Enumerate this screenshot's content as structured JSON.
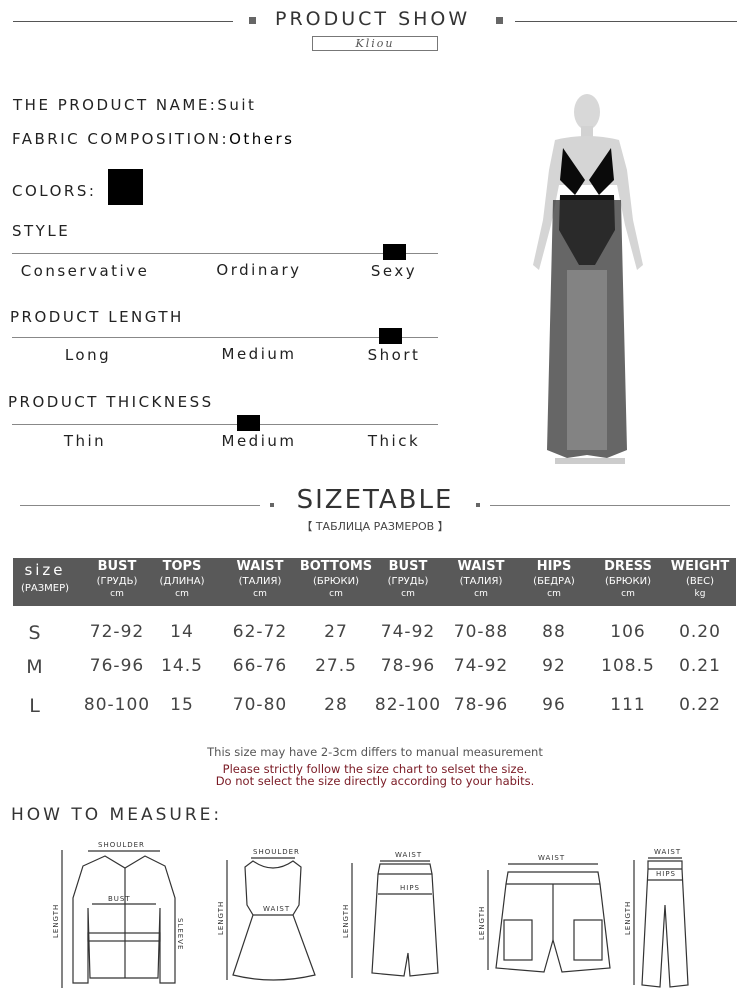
{
  "header": {
    "title": "PRODUCT SHOW",
    "brand": "Kliou"
  },
  "product": {
    "name_label": "THE PRODUCT NAME:",
    "name_value": "Suit",
    "fabric_label": "FABRIC COMPOSITION:",
    "fabric_value": "Others",
    "colors_label": "COLORS:",
    "color_swatches": [
      "#000000"
    ]
  },
  "scales": [
    {
      "title": "STYLE",
      "options": [
        "Conservative",
        "Ordinary",
        "Sexy"
      ],
      "selected": "Sexy"
    },
    {
      "title": "PRODUCT LENGTH",
      "options": [
        "Long",
        "Medium",
        "Short"
      ],
      "selected": "Short"
    },
    {
      "title": "PRODUCT THICKNESS",
      "options": [
        "Thin",
        "Medium",
        "Thick"
      ],
      "selected": "Medium"
    }
  ],
  "sizetable": {
    "title": "SIZETABLE",
    "subtitle": "【 ТАБЛИЦА РАЗМЕРОВ 】",
    "columns": [
      {
        "name": "size",
        "ru": "(РАЗМЕР)",
        "unit": ""
      },
      {
        "name": "BUST",
        "ru": "(ГРУДЬ)",
        "unit": "cm"
      },
      {
        "name": "TOPS",
        "ru": "(ДЛИНА)",
        "unit": "cm"
      },
      {
        "name": "WAIST",
        "ru": "(ТАЛИЯ)",
        "unit": "cm"
      },
      {
        "name": "BOTTOMS",
        "ru": "(БРЮКИ)",
        "unit": "cm"
      },
      {
        "name": "BUST",
        "ru": "(ГРУДЬ)",
        "unit": "cm"
      },
      {
        "name": "WAIST",
        "ru": "(ТАЛИЯ)",
        "unit": "cm"
      },
      {
        "name": "HIPS",
        "ru": "(БЕДРА)",
        "unit": "cm"
      },
      {
        "name": "DRESS",
        "ru": "(БРЮКИ)",
        "unit": "cm"
      },
      {
        "name": "WEIGHT",
        "ru": "(ВЕС)",
        "unit": "kg"
      }
    ],
    "rows": [
      [
        "S",
        "72-92",
        "14",
        "62-72",
        "27",
        "74-92",
        "70-88",
        "88",
        "106",
        "0.20"
      ],
      [
        "M",
        "76-96",
        "14.5",
        "66-76",
        "27.5",
        "78-96",
        "74-92",
        "92",
        "108.5",
        "0.21"
      ],
      [
        "L",
        "80-100",
        "15",
        "70-80",
        "28",
        "82-100",
        "78-96",
        "96",
        "111",
        "0.22"
      ]
    ],
    "header_bg": "#595959"
  },
  "notes": {
    "line1": "This size may have 2-3cm differs to manual measurement",
    "line2": "Please strictly follow the size chart to selset the size.",
    "line3": "Do not select the size directly according to your habits.",
    "warn_color": "#7a1a24"
  },
  "measure": {
    "title": "HOW TO MEASURE:",
    "labels": {
      "shoulder": "SHOULDER",
      "bust": "BUST",
      "length": "LENGTH",
      "sleeve": "SLEEVE",
      "waist": "WAIST",
      "hips": "HIPS"
    }
  }
}
